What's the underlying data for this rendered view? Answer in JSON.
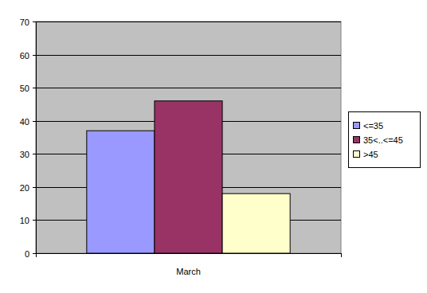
{
  "chart_data": {
    "type": "bar",
    "categories": [
      "March"
    ],
    "series": [
      {
        "name": "<=35",
        "color": "#9999ff",
        "values": [
          37
        ]
      },
      {
        "name": "35<..<=45",
        "color": "#993366",
        "values": [
          46
        ]
      },
      {
        "name": ">45",
        "color": "#ffffcc",
        "values": [
          18
        ]
      }
    ],
    "ylim": [
      0,
      70
    ],
    "yticks": [
      0,
      10,
      20,
      30,
      40,
      50,
      60,
      70
    ],
    "grid": true,
    "legend": "right"
  }
}
